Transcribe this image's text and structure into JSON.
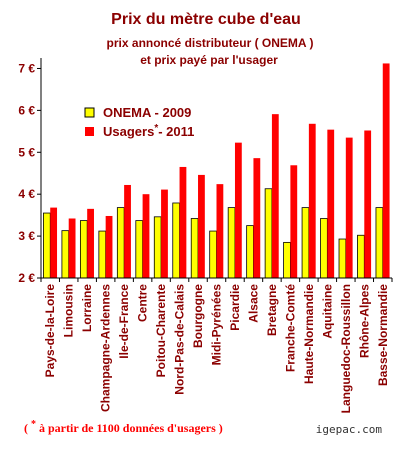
{
  "header": {
    "title": "Prix du mètre cube d'eau",
    "subtitle_line1": "prix annoncé distributeur  ( ONEMA )",
    "subtitle_line2": "et prix payé par l'usager"
  },
  "footer": {
    "note_prefix": "( ",
    "note_star": "*",
    "note_text": " à partir de 1100 données d'usagers )",
    "credit": "igepac.com"
  },
  "colors": {
    "onema": "#ffff00",
    "usagers": "#ff0000",
    "bar_stroke": "#000000",
    "text": "#8b0000",
    "axis": "#000000"
  },
  "chart_data": {
    "type": "bar",
    "title": "Prix du mètre cube d'eau",
    "categories": [
      "Pays-de-la-Loire",
      "Limousin",
      "Lorraine",
      "Champagne-Ardennes",
      "Ile-de-France",
      "Centre",
      "Poitou-Charente",
      "Nord-Pas-de-Calais",
      "Bourgogne",
      "Midi-Pyrénées",
      "Picardie",
      "Alsace",
      "Bretagne",
      "Franche-Comté",
      "Haute-Normandie",
      "Aquitaine",
      "Languedoc-Roussillon",
      "Rhône-Alpes",
      "Basse-Normandie"
    ],
    "series": [
      {
        "name": "ONEMA - 2009",
        "values": [
          3.55,
          3.13,
          3.37,
          3.12,
          3.68,
          3.37,
          3.46,
          3.79,
          3.42,
          3.12,
          3.68,
          3.25,
          4.13,
          2.85,
          3.68,
          3.42,
          2.93,
          3.02,
          3.68
        ]
      },
      {
        "name": "Usagers*- 2011",
        "values": [
          3.68,
          3.42,
          3.65,
          3.48,
          4.22,
          4.0,
          4.11,
          4.65,
          4.46,
          4.24,
          5.23,
          4.86,
          5.91,
          4.69,
          5.68,
          5.54,
          5.35,
          5.52,
          7.12
        ]
      }
    ],
    "legend_labels": {
      "onema": "ONEMA - 2009",
      "usagers_main": "Usagers",
      "usagers_star": "*",
      "usagers_year": "- 2011"
    },
    "yticks": [
      "2 €",
      "3 €",
      "4 €",
      "5 €",
      "6 €",
      "7 €"
    ],
    "ytick_values": [
      2,
      3,
      4,
      5,
      6,
      7
    ],
    "ylim": [
      2,
      7.25
    ],
    "grid": false,
    "legend_position": "top-left"
  }
}
